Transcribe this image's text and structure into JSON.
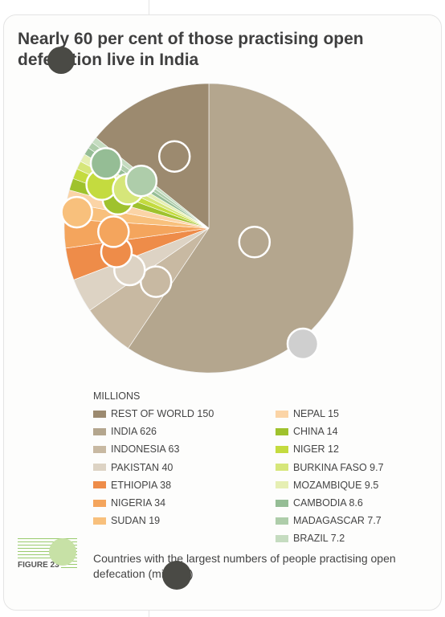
{
  "title": "Nearly 60 per cent of those practising open defecation live in India",
  "legend_header": "MILLIONS",
  "figure_label": "FIGURE 23",
  "caption": "Countries with the largest numbers of people practising open defecation (millions)",
  "chart_data": {
    "type": "pie",
    "title": "Nearly 60 per cent of those practising open defecation live in India",
    "unit": "MILLIONS",
    "legend_position": "bottom",
    "slices": [
      {
        "label": "REST OF WORLD 150",
        "value": 150,
        "color": "#9c8a6f"
      },
      {
        "label": "INDIA 626",
        "value": 626,
        "color": "#b4a68e"
      },
      {
        "label": "INDONESIA 63",
        "value": 63,
        "color": "#c8b9a2"
      },
      {
        "label": "PAKISTAN 40",
        "value": 40,
        "color": "#ddd3c4"
      },
      {
        "label": "ETHIOPIA 38",
        "value": 38,
        "color": "#ee8c49"
      },
      {
        "label": "NIGERIA 34",
        "value": 34,
        "color": "#f4a55d"
      },
      {
        "label": "SUDAN 19",
        "value": 19,
        "color": "#f8c07c"
      },
      {
        "label": "NEPAL 15",
        "value": 15,
        "color": "#fbd4a6"
      },
      {
        "label": "CHINA 14",
        "value": 14,
        "color": "#9fc22d"
      },
      {
        "label": "NIGER 12",
        "value": 12,
        "color": "#c4db3f"
      },
      {
        "label": "BURKINA FASO 9.7",
        "value": 9.7,
        "color": "#d6e67a"
      },
      {
        "label": "MOZAMBIQUE 9.5",
        "value": 9.5,
        "color": "#e6efb3"
      },
      {
        "label": "CAMBODIA 8.6",
        "value": 8.6,
        "color": "#95bd95"
      },
      {
        "label": "MADAGASCAR 7.7",
        "value": 7.7,
        "color": "#aecdaa"
      },
      {
        "label": "BRAZIL 7.2",
        "value": 7.2,
        "color": "#c5dcc0"
      }
    ]
  }
}
